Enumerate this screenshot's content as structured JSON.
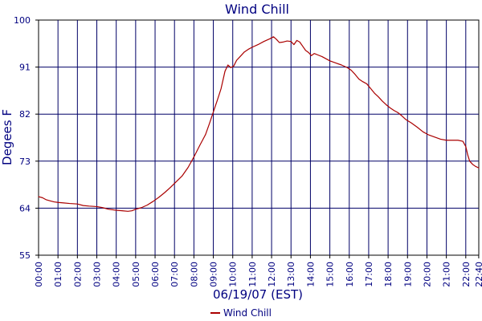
{
  "chart_data": {
    "type": "line",
    "title": "Wind Chill",
    "xlabel": "06/19/07 (EST)",
    "ylabel": "Degees F",
    "ylim": [
      55,
      100
    ],
    "xlim_hours": [
      0,
      22.67
    ],
    "yticks": [
      "55",
      "64",
      "73",
      "82",
      "91",
      "100"
    ],
    "xticks": [
      "00:00",
      "01:00",
      "02:00",
      "03:00",
      "04:00",
      "05:00",
      "06:00",
      "07:00",
      "08:00",
      "09:00",
      "10:00",
      "11:00",
      "12:00",
      "13:00",
      "14:00",
      "15:00",
      "16:00",
      "17:00",
      "18:00",
      "19:00",
      "20:00",
      "21:00",
      "22:00",
      "22:40"
    ],
    "grid": true,
    "legend": "bottom-center",
    "colors": {
      "series": "#aa0000",
      "grid": "#000066",
      "axis_text": "#000080",
      "title": "#000080"
    },
    "series": [
      {
        "name": "Wind Chill",
        "points": [
          [
            0.0,
            66.2
          ],
          [
            0.2,
            66.0
          ],
          [
            0.4,
            65.6
          ],
          [
            0.6,
            65.4
          ],
          [
            0.8,
            65.2
          ],
          [
            1.0,
            65.1
          ],
          [
            1.3,
            65.0
          ],
          [
            1.6,
            64.9
          ],
          [
            2.0,
            64.8
          ],
          [
            2.3,
            64.5
          ],
          [
            2.6,
            64.4
          ],
          [
            3.0,
            64.3
          ],
          [
            3.3,
            64.1
          ],
          [
            3.6,
            63.8
          ],
          [
            4.0,
            63.6
          ],
          [
            4.3,
            63.5
          ],
          [
            4.6,
            63.4
          ],
          [
            4.8,
            63.5
          ],
          [
            5.0,
            63.8
          ],
          [
            5.3,
            64.1
          ],
          [
            5.6,
            64.6
          ],
          [
            5.9,
            65.3
          ],
          [
            6.2,
            66.1
          ],
          [
            6.5,
            67.0
          ],
          [
            6.8,
            68.0
          ],
          [
            7.1,
            69.1
          ],
          [
            7.4,
            70.2
          ],
          [
            7.7,
            71.8
          ],
          [
            8.0,
            73.8
          ],
          [
            8.3,
            76.0
          ],
          [
            8.6,
            78.1
          ],
          [
            8.8,
            80.2
          ],
          [
            9.0,
            82.4
          ],
          [
            9.2,
            84.6
          ],
          [
            9.4,
            86.9
          ],
          [
            9.6,
            90.2
          ],
          [
            9.75,
            91.4
          ],
          [
            9.9,
            90.9
          ],
          [
            10.05,
            91.2
          ],
          [
            10.2,
            92.3
          ],
          [
            10.4,
            93.1
          ],
          [
            10.6,
            93.9
          ],
          [
            10.8,
            94.4
          ],
          [
            11.0,
            94.8
          ],
          [
            11.3,
            95.3
          ],
          [
            11.6,
            95.9
          ],
          [
            11.9,
            96.4
          ],
          [
            12.1,
            96.8
          ],
          [
            12.25,
            96.3
          ],
          [
            12.4,
            95.7
          ],
          [
            12.6,
            95.8
          ],
          [
            12.8,
            96.0
          ],
          [
            13.0,
            95.9
          ],
          [
            13.15,
            95.3
          ],
          [
            13.3,
            96.1
          ],
          [
            13.45,
            95.8
          ],
          [
            13.6,
            95.0
          ],
          [
            13.75,
            94.2
          ],
          [
            13.9,
            93.8
          ],
          [
            14.05,
            93.2
          ],
          [
            14.2,
            93.6
          ],
          [
            14.4,
            93.3
          ],
          [
            14.6,
            93.0
          ],
          [
            14.8,
            92.6
          ],
          [
            15.0,
            92.2
          ],
          [
            15.3,
            91.8
          ],
          [
            15.6,
            91.4
          ],
          [
            15.9,
            90.9
          ],
          [
            16.1,
            90.4
          ],
          [
            16.3,
            89.6
          ],
          [
            16.5,
            88.7
          ],
          [
            16.7,
            88.2
          ],
          [
            16.9,
            87.8
          ],
          [
            17.1,
            86.9
          ],
          [
            17.3,
            86.0
          ],
          [
            17.5,
            85.3
          ],
          [
            17.7,
            84.5
          ],
          [
            17.9,
            83.8
          ],
          [
            18.1,
            83.2
          ],
          [
            18.3,
            82.7
          ],
          [
            18.5,
            82.3
          ],
          [
            18.7,
            81.7
          ],
          [
            18.9,
            81.0
          ],
          [
            19.2,
            80.3
          ],
          [
            19.5,
            79.5
          ],
          [
            19.8,
            78.6
          ],
          [
            20.1,
            78.0
          ],
          [
            20.4,
            77.6
          ],
          [
            20.7,
            77.2
          ],
          [
            21.0,
            77.0
          ],
          [
            21.3,
            77.0
          ],
          [
            21.6,
            77.0
          ],
          [
            21.85,
            76.8
          ],
          [
            22.0,
            75.8
          ],
          [
            22.1,
            74.2
          ],
          [
            22.2,
            73.0
          ],
          [
            22.35,
            72.4
          ],
          [
            22.5,
            72.0
          ],
          [
            22.67,
            71.7
          ]
        ]
      }
    ]
  }
}
